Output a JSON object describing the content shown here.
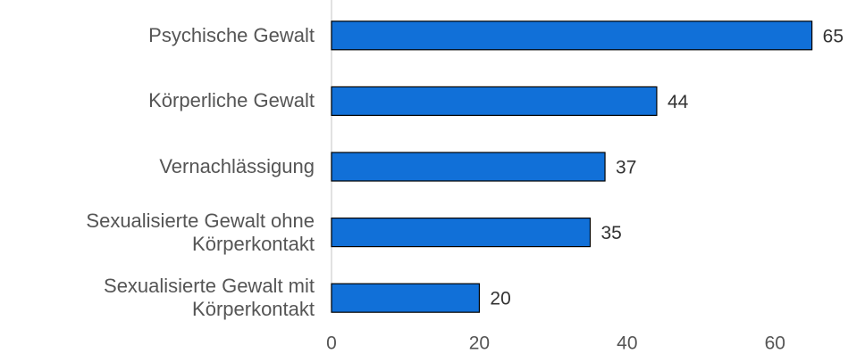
{
  "chart_data": {
    "type": "bar",
    "orientation": "horizontal",
    "categories": [
      "Psychische Gewalt",
      "Körperliche Gewalt",
      "Vernachlässigung",
      "Sexualisierte Gewalt ohne Körperkontakt",
      "Sexualisierte Gewalt mit Körperkontakt"
    ],
    "values": [
      65,
      44,
      37,
      35,
      20
    ],
    "color": "#1170d8",
    "xlim": [
      0,
      70
    ],
    "xticks": [
      0,
      20,
      40,
      60
    ],
    "grid": false
  }
}
